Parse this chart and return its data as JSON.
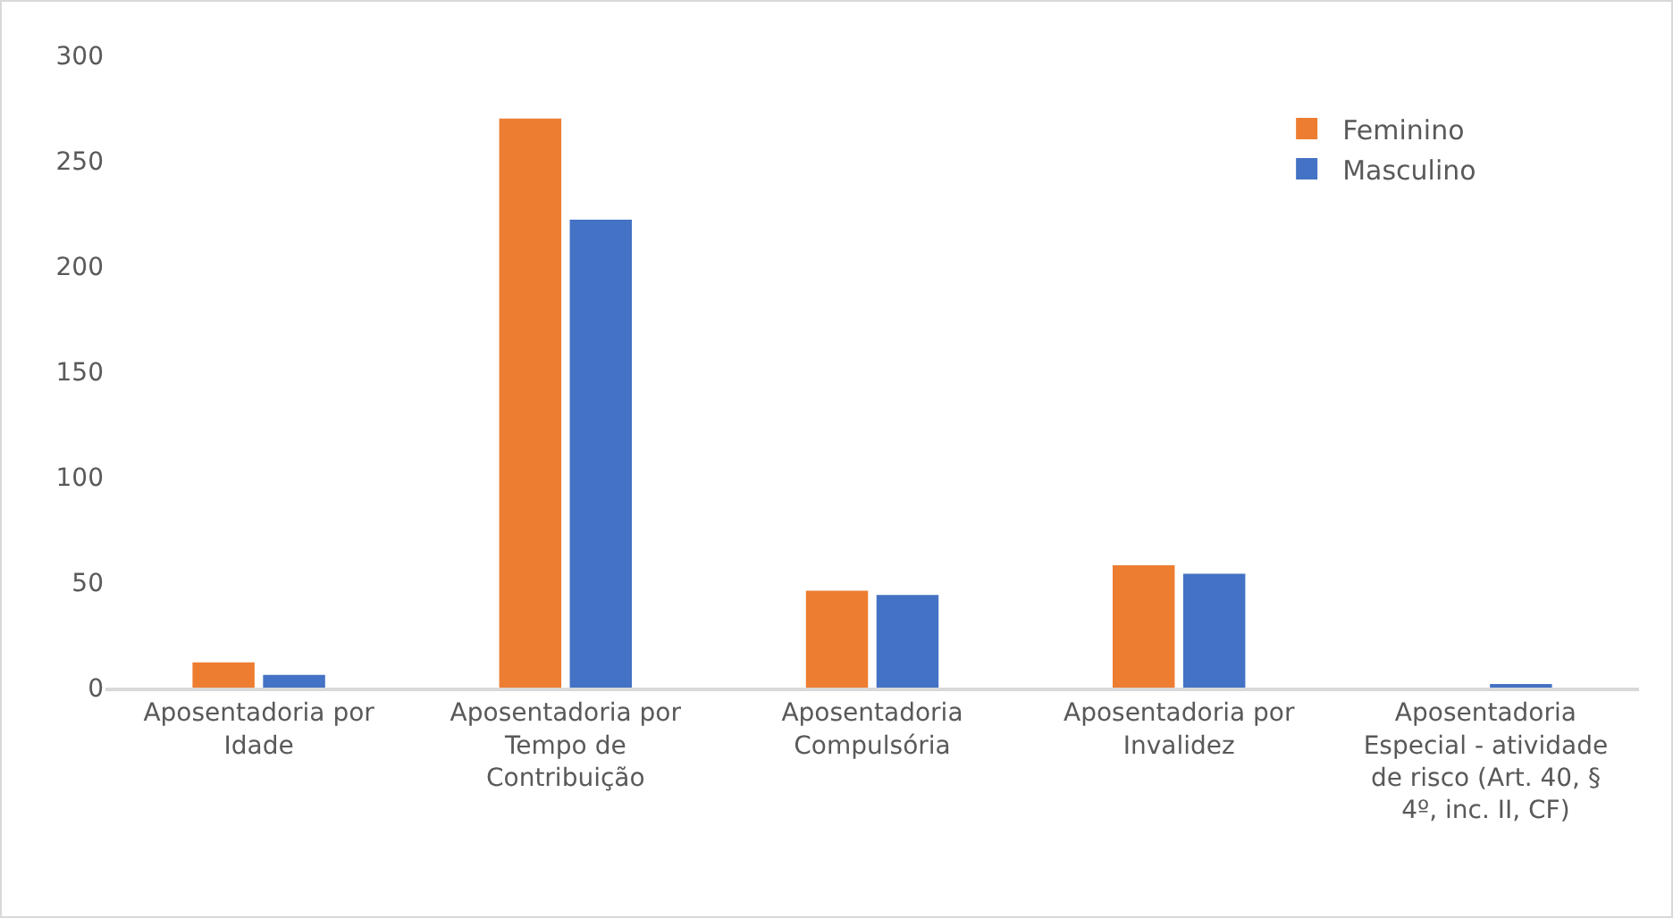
{
  "chart_data": {
    "type": "bar",
    "categories": [
      "Aposentadoria por Idade",
      "Aposentadoria por Tempo de Contribuição",
      "Aposentadoria Compulsória",
      "Aposentadoria por Invalidez",
      "Aposentadoria Especial - atividade de risco (Art. 40, § 4º, inc. II, CF)"
    ],
    "series": [
      {
        "name": "Feminino",
        "color": "#ed7d31",
        "values": [
          12,
          270,
          46,
          58,
          0
        ]
      },
      {
        "name": "Masculino",
        "color": "#4472c4",
        "values": [
          6,
          222,
          44,
          54,
          1
        ]
      }
    ],
    "ylim": [
      0,
      300
    ],
    "yticks": [
      0,
      50,
      100,
      150,
      200,
      250,
      300
    ],
    "grid": false,
    "legend": "top right"
  }
}
